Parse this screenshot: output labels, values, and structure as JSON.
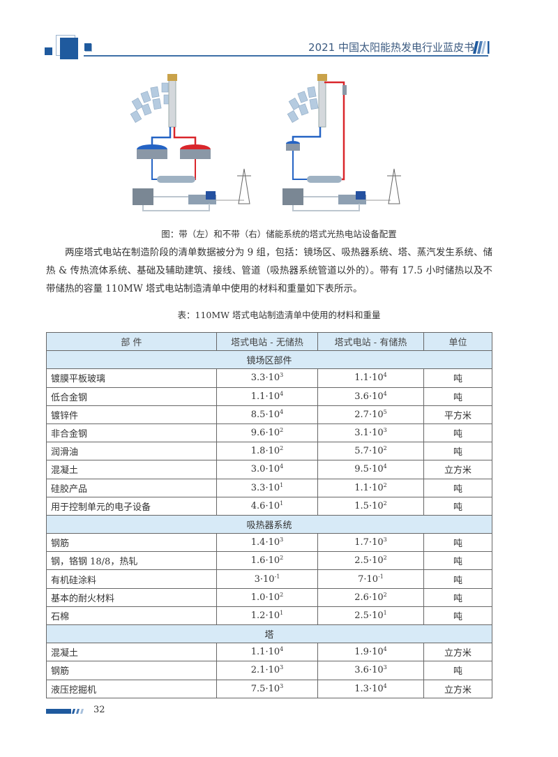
{
  "header": {
    "title": "2021 中国太阳能热发电行业蓝皮书",
    "accent": "#1f5a9e"
  },
  "figure": {
    "caption": "图：带（左）和不带（右）储能系统的塔式光热电站设备配置"
  },
  "paragraph": "两座塔式电站在制造阶段的清单数据被分为 9 组，包括：镜场区、吸热器系统、塔、蒸汽发生系统、储热 & 传热流体系统、基础及辅助建筑、接线、管道（吸热器系统管道以外的）。带有 17.5 小时储热以及不带储热的容量 110MW 塔式电站制造清单中使用的材料和重量如下表所示。",
  "table": {
    "caption": "表：110MW 塔式电站制造清单中使用的材料和重量",
    "headers": [
      "部 件",
      "塔式电站 - 无储热",
      "塔式电站 - 有储热",
      "单位"
    ],
    "sections": [
      {
        "title": "镜场区部件",
        "rows": [
          {
            "name": "镀膜平板玻璃",
            "a": {
              "m": "3.3·10",
              "e": "3"
            },
            "b": {
              "m": "1.1·10",
              "e": "4"
            },
            "unit": "吨"
          },
          {
            "name": "低合金钢",
            "a": {
              "m": "1.1·10",
              "e": "4"
            },
            "b": {
              "m": "3.6·10",
              "e": "4"
            },
            "unit": "吨"
          },
          {
            "name": "镀锌件",
            "a": {
              "m": "8.5·10",
              "e": "4"
            },
            "b": {
              "m": "2.7·10",
              "e": "5"
            },
            "unit": "平方米"
          },
          {
            "name": "非合金钢",
            "a": {
              "m": "9.6·10",
              "e": "2"
            },
            "b": {
              "m": "3.1·10",
              "e": "3"
            },
            "unit": "吨"
          },
          {
            "name": "润滑油",
            "a": {
              "m": "1.8·10",
              "e": "2"
            },
            "b": {
              "m": "5.7·10",
              "e": "2"
            },
            "unit": "吨"
          },
          {
            "name": "混凝土",
            "a": {
              "m": "3.0·10",
              "e": "4"
            },
            "b": {
              "m": "9.5·10",
              "e": "4"
            },
            "unit": "立方米"
          },
          {
            "name": "硅胶产品",
            "a": {
              "m": "3.3·10",
              "e": "1"
            },
            "b": {
              "m": "1.1·10",
              "e": "2"
            },
            "unit": "吨"
          },
          {
            "name": "用于控制单元的电子设备",
            "a": {
              "m": "4.6·10",
              "e": "1"
            },
            "b": {
              "m": "1.5·10",
              "e": "2"
            },
            "unit": "吨"
          }
        ]
      },
      {
        "title": "吸热器系统",
        "rows": [
          {
            "name": "钢筋",
            "a": {
              "m": "1.4·10",
              "e": "3"
            },
            "b": {
              "m": "1.7·10",
              "e": "3"
            },
            "unit": "吨"
          },
          {
            "name": "钢，铬钢 18/8，热轧",
            "a": {
              "m": "1.6·10",
              "e": "2"
            },
            "b": {
              "m": "2.5·10",
              "e": "2"
            },
            "unit": "吨"
          },
          {
            "name": "有机硅涂料",
            "a": {
              "m": "3·10",
              "e": "-1"
            },
            "b": {
              "m": "7·10",
              "e": "-1"
            },
            "unit": "吨"
          },
          {
            "name": "基本的耐火材料",
            "a": {
              "m": "1.0·10",
              "e": "2"
            },
            "b": {
              "m": "2.6·10",
              "e": "2"
            },
            "unit": "吨"
          },
          {
            "name": "石棉",
            "a": {
              "m": "1.2·10",
              "e": "1"
            },
            "b": {
              "m": "2.5·10",
              "e": "1"
            },
            "unit": "吨"
          }
        ]
      },
      {
        "title": "塔",
        "rows": [
          {
            "name": "混凝土",
            "a": {
              "m": "1.1·10",
              "e": "4"
            },
            "b": {
              "m": "1.9·10",
              "e": "4"
            },
            "unit": "立方米"
          },
          {
            "name": "钢筋",
            "a": {
              "m": "2.1·10",
              "e": "3"
            },
            "b": {
              "m": "3.6·10",
              "e": "3"
            },
            "unit": "吨"
          },
          {
            "name": "液压挖掘机",
            "a": {
              "m": "7.5·10",
              "e": "3"
            },
            "b": {
              "m": "1.3·10",
              "e": "4"
            },
            "unit": "立方米"
          }
        ]
      }
    ]
  },
  "footer": {
    "page_number": "32"
  }
}
